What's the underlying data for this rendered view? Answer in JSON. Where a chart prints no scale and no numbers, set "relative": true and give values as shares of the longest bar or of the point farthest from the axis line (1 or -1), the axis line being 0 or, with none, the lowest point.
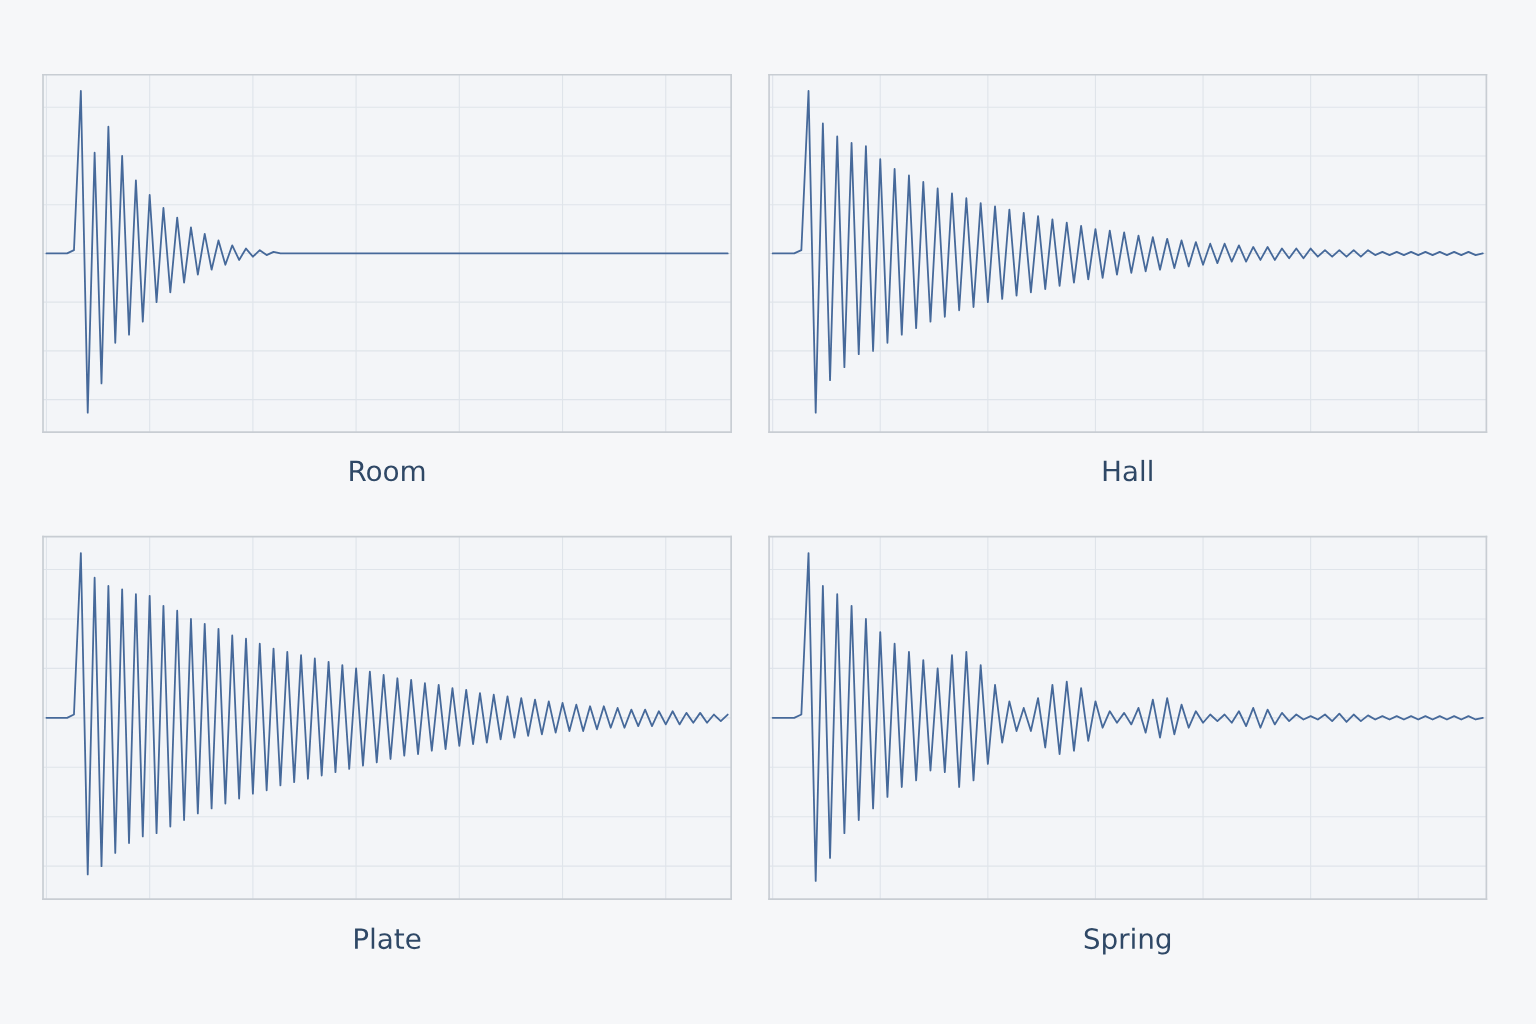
{
  "chart_data": [
    {
      "type": "line",
      "title": "Room",
      "relative": true,
      "grid": true,
      "tick_labels": false,
      "categories": [
        null,
        null,
        null,
        null,
        null,
        null,
        null,
        null,
        null,
        null,
        null,
        null,
        null,
        null,
        null,
        null,
        null,
        null,
        null,
        null,
        null,
        null,
        null,
        null,
        null,
        null,
        null,
        null,
        null,
        null,
        null,
        null,
        null,
        null,
        null,
        null,
        null,
        null,
        null,
        null,
        null,
        null,
        null,
        null,
        null,
        null,
        null,
        null,
        null,
        null,
        null,
        null,
        null,
        null,
        null,
        null,
        null,
        null,
        null,
        null,
        null,
        null,
        null,
        null,
        null,
        null,
        null,
        null,
        null,
        null,
        null,
        null,
        null,
        null,
        null,
        null,
        null,
        null,
        null,
        null,
        null,
        null,
        null,
        null,
        null,
        null,
        null,
        null,
        null,
        null,
        null,
        null,
        null,
        null,
        null,
        null,
        null,
        null,
        null,
        null
      ],
      "series": [
        {
          "color": "#46699a",
          "values": [
            0,
            0,
            0,
            0,
            0.02,
            1.0,
            -0.98,
            0.62,
            -0.8,
            0.78,
            -0.55,
            0.6,
            -0.5,
            0.45,
            -0.42,
            0.36,
            -0.3,
            0.28,
            -0.24,
            0.22,
            -0.18,
            0.16,
            -0.13,
            0.12,
            -0.1,
            0.08,
            -0.07,
            0.05,
            -0.04,
            0.03,
            -0.02,
            0.02,
            -0.01,
            0.01,
            0,
            0,
            0,
            0,
            0,
            0,
            0,
            0,
            0,
            0,
            0,
            0,
            0,
            0,
            0,
            0,
            0,
            0,
            0,
            0,
            0,
            0,
            0,
            0,
            0,
            0,
            0,
            0,
            0,
            0,
            0,
            0,
            0,
            0,
            0,
            0,
            0,
            0,
            0,
            0,
            0,
            0,
            0,
            0,
            0,
            0,
            0,
            0,
            0,
            0,
            0,
            0,
            0,
            0,
            0,
            0,
            0,
            0,
            0,
            0,
            0,
            0,
            0,
            0,
            0,
            0
          ]
        }
      ]
    },
    {
      "type": "line",
      "title": "Hall",
      "relative": true,
      "grid": true,
      "tick_labels": false,
      "categories": [
        null,
        null,
        null,
        null,
        null,
        null,
        null,
        null,
        null,
        null,
        null,
        null,
        null,
        null,
        null,
        null,
        null,
        null,
        null,
        null,
        null,
        null,
        null,
        null,
        null,
        null,
        null,
        null,
        null,
        null,
        null,
        null,
        null,
        null,
        null,
        null,
        null,
        null,
        null,
        null,
        null,
        null,
        null,
        null,
        null,
        null,
        null,
        null,
        null,
        null,
        null,
        null,
        null,
        null,
        null,
        null,
        null,
        null,
        null,
        null,
        null,
        null,
        null,
        null,
        null,
        null,
        null,
        null,
        null,
        null,
        null,
        null,
        null,
        null,
        null,
        null,
        null,
        null,
        null,
        null,
        null,
        null,
        null,
        null,
        null,
        null,
        null,
        null,
        null,
        null,
        null,
        null,
        null,
        null,
        null,
        null,
        null,
        null,
        null,
        null
      ],
      "series": [
        {
          "color": "#46699a",
          "values": [
            0,
            0,
            0,
            0,
            0.02,
            1.0,
            -0.98,
            0.8,
            -0.78,
            0.72,
            -0.7,
            0.68,
            -0.62,
            0.66,
            -0.6,
            0.58,
            -0.55,
            0.52,
            -0.5,
            0.48,
            -0.46,
            0.44,
            -0.42,
            0.4,
            -0.39,
            0.37,
            -0.35,
            0.34,
            -0.33,
            0.31,
            -0.3,
            0.29,
            -0.28,
            0.27,
            -0.26,
            0.25,
            -0.24,
            0.23,
            -0.22,
            0.21,
            -0.2,
            0.19,
            -0.18,
            0.17,
            -0.16,
            0.15,
            -0.15,
            0.14,
            -0.13,
            0.13,
            -0.12,
            0.11,
            -0.11,
            0.1,
            -0.1,
            0.09,
            -0.09,
            0.08,
            -0.08,
            0.07,
            -0.07,
            0.06,
            -0.06,
            0.06,
            -0.05,
            0.05,
            -0.05,
            0.04,
            -0.04,
            0.04,
            -0.04,
            0.03,
            -0.03,
            0.03,
            -0.03,
            0.03,
            -0.02,
            0.02,
            -0.02,
            0.02,
            -0.02,
            0.02,
            -0.02,
            0.02,
            -0.01,
            0.01,
            -0.01,
            0.01,
            -0.01,
            0.01,
            -0.01,
            0.01,
            -0.01,
            0.01,
            -0.01,
            0.01,
            -0.01,
            0.01,
            -0.01,
            0
          ]
        }
      ]
    },
    {
      "type": "line",
      "title": "Plate",
      "relative": true,
      "grid": true,
      "tick_labels": false,
      "categories": [
        null,
        null,
        null,
        null,
        null,
        null,
        null,
        null,
        null,
        null,
        null,
        null,
        null,
        null,
        null,
        null,
        null,
        null,
        null,
        null,
        null,
        null,
        null,
        null,
        null,
        null,
        null,
        null,
        null,
        null,
        null,
        null,
        null,
        null,
        null,
        null,
        null,
        null,
        null,
        null,
        null,
        null,
        null,
        null,
        null,
        null,
        null,
        null,
        null,
        null,
        null,
        null,
        null,
        null,
        null,
        null,
        null,
        null,
        null,
        null,
        null,
        null,
        null,
        null,
        null,
        null,
        null,
        null,
        null,
        null,
        null,
        null,
        null,
        null,
        null,
        null,
        null,
        null,
        null,
        null,
        null,
        null,
        null,
        null,
        null,
        null,
        null,
        null,
        null,
        null,
        null,
        null,
        null,
        null,
        null,
        null,
        null,
        null,
        null,
        null
      ],
      "series": [
        {
          "color": "#46699a",
          "values": [
            0,
            0,
            0,
            0,
            0.02,
            1.0,
            -0.95,
            0.85,
            -0.9,
            0.8,
            -0.82,
            0.78,
            -0.76,
            0.75,
            -0.72,
            0.74,
            -0.7,
            0.68,
            -0.66,
            0.65,
            -0.62,
            0.6,
            -0.58,
            0.57,
            -0.55,
            0.54,
            -0.52,
            0.5,
            -0.49,
            0.48,
            -0.46,
            0.45,
            -0.44,
            0.42,
            -0.41,
            0.4,
            -0.39,
            0.38,
            -0.37,
            0.36,
            -0.35,
            0.34,
            -0.33,
            0.32,
            -0.31,
            0.3,
            -0.29,
            0.28,
            -0.27,
            0.26,
            -0.25,
            0.24,
            -0.23,
            0.23,
            -0.22,
            0.21,
            -0.2,
            0.2,
            -0.19,
            0.18,
            -0.17,
            0.17,
            -0.16,
            0.15,
            -0.15,
            0.14,
            -0.13,
            0.13,
            -0.12,
            0.12,
            -0.11,
            0.11,
            -0.1,
            0.1,
            -0.09,
            0.09,
            -0.08,
            0.08,
            -0.08,
            0.07,
            -0.07,
            0.07,
            -0.06,
            0.06,
            -0.06,
            0.05,
            -0.05,
            0.05,
            -0.05,
            0.04,
            -0.04,
            0.04,
            -0.04,
            0.03,
            -0.03,
            0.03,
            -0.03,
            0.02,
            -0.02,
            0.02
          ]
        }
      ]
    },
    {
      "type": "line",
      "title": "Spring",
      "relative": true,
      "grid": true,
      "tick_labels": false,
      "categories": [
        null,
        null,
        null,
        null,
        null,
        null,
        null,
        null,
        null,
        null,
        null,
        null,
        null,
        null,
        null,
        null,
        null,
        null,
        null,
        null,
        null,
        null,
        null,
        null,
        null,
        null,
        null,
        null,
        null,
        null,
        null,
        null,
        null,
        null,
        null,
        null,
        null,
        null,
        null,
        null,
        null,
        null,
        null,
        null,
        null,
        null,
        null,
        null,
        null,
        null,
        null,
        null,
        null,
        null,
        null,
        null,
        null,
        null,
        null,
        null,
        null,
        null,
        null,
        null,
        null,
        null,
        null,
        null,
        null,
        null,
        null,
        null,
        null,
        null,
        null,
        null,
        null,
        null,
        null,
        null,
        null,
        null,
        null,
        null,
        null,
        null,
        null,
        null,
        null,
        null,
        null,
        null,
        null,
        null,
        null,
        null,
        null,
        null,
        null,
        null
      ],
      "series": [
        {
          "color": "#46699a",
          "values": [
            0,
            0,
            0,
            0,
            0.02,
            1.0,
            -0.99,
            0.8,
            -0.85,
            0.75,
            -0.7,
            0.68,
            -0.62,
            0.6,
            -0.55,
            0.52,
            -0.48,
            0.45,
            -0.42,
            0.4,
            -0.38,
            0.35,
            -0.32,
            0.3,
            -0.33,
            0.38,
            -0.42,
            0.4,
            -0.38,
            0.32,
            -0.28,
            0.2,
            -0.15,
            0.1,
            -0.08,
            0.06,
            -0.08,
            0.12,
            -0.18,
            0.2,
            -0.22,
            0.22,
            -0.2,
            0.18,
            -0.14,
            0.1,
            -0.06,
            0.04,
            -0.03,
            0.03,
            -0.04,
            0.06,
            -0.09,
            0.11,
            -0.12,
            0.12,
            -0.1,
            0.08,
            -0.06,
            0.04,
            -0.03,
            0.02,
            -0.02,
            0.02,
            -0.03,
            0.04,
            -0.05,
            0.06,
            -0.06,
            0.05,
            -0.04,
            0.03,
            -0.02,
            0.02,
            -0.01,
            0.01,
            -0.01,
            0.02,
            -0.02,
            0.025,
            -0.025,
            0.02,
            -0.02,
            0.015,
            -0.01,
            0.01,
            -0.01,
            0.01,
            -0.01,
            0.01,
            -0.01,
            0.01,
            -0.01,
            0.01,
            -0.01,
            0.01,
            -0.01,
            0.01,
            -0.01,
            0
          ]
        }
      ]
    }
  ]
}
